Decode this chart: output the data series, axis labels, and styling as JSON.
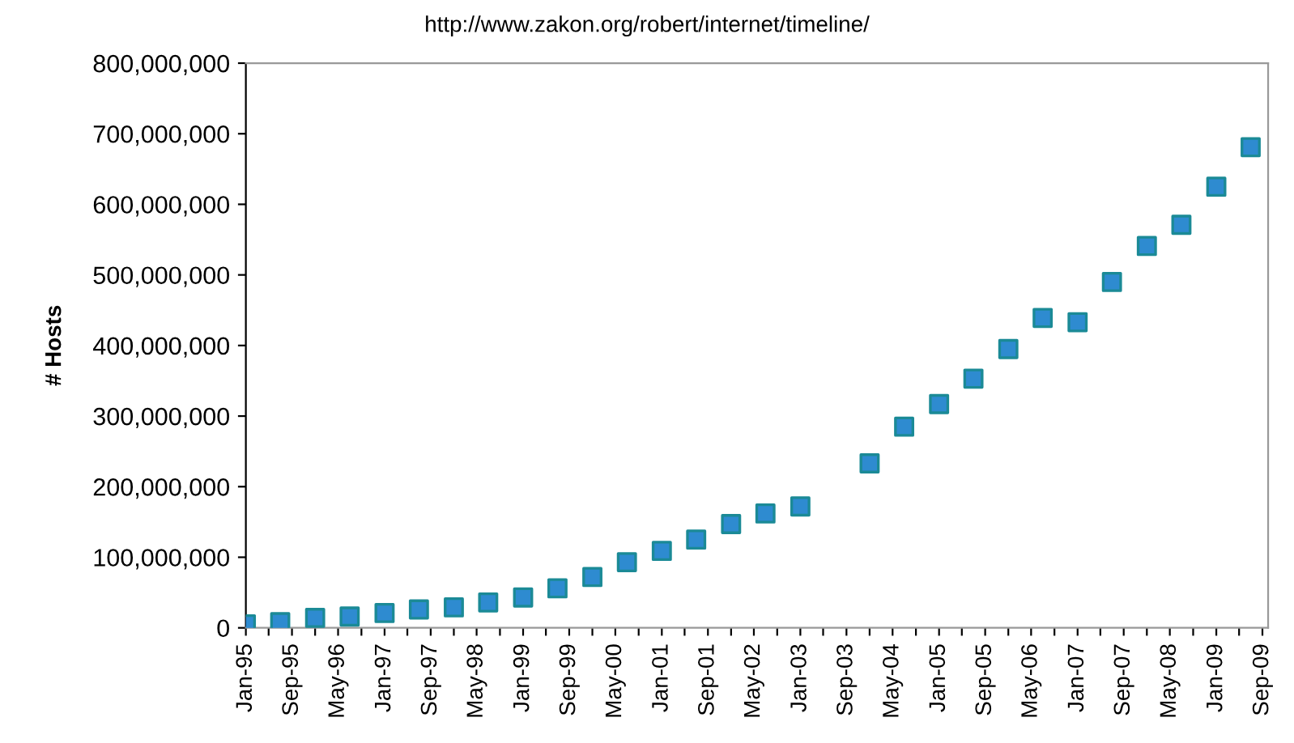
{
  "chart_data": {
    "type": "scatter",
    "ylabel": "# Hosts",
    "annotations": [
      "http://www.zakon.org/robert/internet/timeline/"
    ],
    "x": [
      "1995-01",
      "1995-07",
      "1996-01",
      "1996-07",
      "1997-01",
      "1997-07",
      "1998-01",
      "1998-07",
      "1999-01",
      "1999-07",
      "2000-01",
      "2000-07",
      "2001-01",
      "2001-07",
      "2002-01",
      "2002-07",
      "2003-01",
      "2004-01",
      "2004-07",
      "2005-01",
      "2005-07",
      "2006-01",
      "2006-07",
      "2007-01",
      "2007-07",
      "2008-01",
      "2008-07",
      "2009-01",
      "2009-07"
    ],
    "series": [
      {
        "color": "#2e8bd0",
        "values": [
          5000000,
          8000000,
          14000000,
          16000000,
          21000000,
          26000000,
          29000000,
          36000000,
          43000000,
          56000000,
          72000000,
          93000000,
          109000000,
          125000000,
          147000000,
          162000000,
          172000000,
          233000000,
          285000000,
          317000000,
          353000000,
          395000000,
          439000000,
          433000000,
          490000000,
          541000000,
          571000000,
          625000000,
          681000000
        ]
      }
    ],
    "marker": "square",
    "grid": false,
    "legend": false,
    "xlim": [
      "1995-01",
      "2009-10"
    ],
    "xticks": [
      {
        "value": "1995-01",
        "label": "Jan-95"
      },
      {
        "value": "1995-05",
        "label": null
      },
      {
        "value": "1995-09",
        "label": "Sep-95"
      },
      {
        "value": "1996-01",
        "label": null
      },
      {
        "value": "1996-05",
        "label": "May-96"
      },
      {
        "value": "1996-09",
        "label": null
      },
      {
        "value": "1997-01",
        "label": "Jan-97"
      },
      {
        "value": "1997-05",
        "label": null
      },
      {
        "value": "1997-09",
        "label": "Sep-97"
      },
      {
        "value": "1998-01",
        "label": null
      },
      {
        "value": "1998-05",
        "label": "May-98"
      },
      {
        "value": "1998-09",
        "label": null
      },
      {
        "value": "1999-01",
        "label": "Jan-99"
      },
      {
        "value": "1999-05",
        "label": null
      },
      {
        "value": "1999-09",
        "label": "Sep-99"
      },
      {
        "value": "2000-01",
        "label": null
      },
      {
        "value": "2000-05",
        "label": "May-00"
      },
      {
        "value": "2000-09",
        "label": null
      },
      {
        "value": "2001-01",
        "label": "Jan-01"
      },
      {
        "value": "2001-05",
        "label": null
      },
      {
        "value": "2001-09",
        "label": "Sep-01"
      },
      {
        "value": "2002-01",
        "label": null
      },
      {
        "value": "2002-05",
        "label": "May-02"
      },
      {
        "value": "2002-09",
        "label": null
      },
      {
        "value": "2003-01",
        "label": "Jan-03"
      },
      {
        "value": "2003-05",
        "label": null
      },
      {
        "value": "2003-09",
        "label": "Sep-03"
      },
      {
        "value": "2004-01",
        "label": null
      },
      {
        "value": "2004-05",
        "label": "May-04"
      },
      {
        "value": "2004-09",
        "label": null
      },
      {
        "value": "2005-01",
        "label": "Jan-05"
      },
      {
        "value": "2005-05",
        "label": null
      },
      {
        "value": "2005-09",
        "label": "Sep-05"
      },
      {
        "value": "2006-01",
        "label": null
      },
      {
        "value": "2006-05",
        "label": "May-06"
      },
      {
        "value": "2006-09",
        "label": null
      },
      {
        "value": "2007-01",
        "label": "Jan-07"
      },
      {
        "value": "2007-05",
        "label": null
      },
      {
        "value": "2007-09",
        "label": "Sep-07"
      },
      {
        "value": "2008-01",
        "label": null
      },
      {
        "value": "2008-05",
        "label": "May-08"
      },
      {
        "value": "2008-09",
        "label": null
      },
      {
        "value": "2009-01",
        "label": "Jan-09"
      },
      {
        "value": "2009-05",
        "label": null
      },
      {
        "value": "2009-09",
        "label": "Sep-09"
      }
    ],
    "ylim": [
      0,
      800000000
    ],
    "yticks": [
      {
        "value": 0,
        "label": "0"
      },
      {
        "value": 100000000,
        "label": "100,000,000"
      },
      {
        "value": 200000000,
        "label": "200,000,000"
      },
      {
        "value": 300000000,
        "label": "300,000,000"
      },
      {
        "value": 400000000,
        "label": "400,000,000"
      },
      {
        "value": 500000000,
        "label": "500,000,000"
      },
      {
        "value": 600000000,
        "label": "600,000,000"
      },
      {
        "value": 700000000,
        "label": "700,000,000"
      },
      {
        "value": 800000000,
        "label": "800,000,000"
      }
    ]
  }
}
